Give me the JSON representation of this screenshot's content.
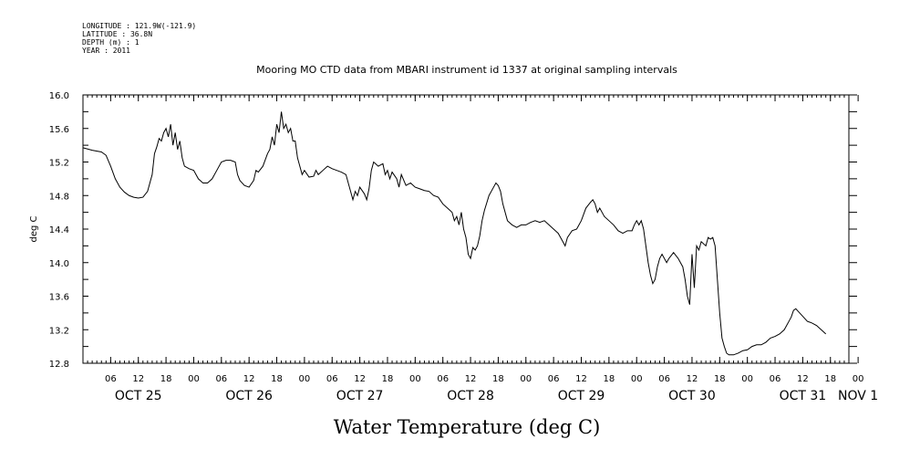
{
  "header": {
    "longitude": "LONGITUDE : 121.9W(-121.9)",
    "latitude": "LATITUDE : 36.8N",
    "depth": "DEPTH (m) : 1",
    "year": "YEAR : 2011"
  },
  "chart_data": {
    "type": "line",
    "title": "Mooring MO CTD data from MBARI instrument id 1337 at original sampling intervals",
    "xlabel": "Water Temperature (deg C)",
    "ylabel": "deg C",
    "xlim_hours": [
      0,
      166
    ],
    "ylim": [
      12.8,
      16.0
    ],
    "yticks": [
      "12.8",
      "13.2",
      "13.6",
      "14.0",
      "14.4",
      "14.8",
      "15.2",
      "15.6",
      "16.0"
    ],
    "hour_ticks": [
      "06",
      "12",
      "18",
      "00",
      "06",
      "12",
      "18",
      "00",
      "06",
      "12",
      "18",
      "00",
      "06",
      "12",
      "18",
      "00",
      "06",
      "12",
      "18",
      "00",
      "06",
      "12",
      "18",
      "00",
      "06",
      "12",
      "18",
      "00"
    ],
    "day_labels": [
      "OCT 25",
      "OCT 26",
      "OCT 27",
      "OCT 28",
      "OCT 29",
      "OCT 30",
      "OCT 31",
      "NOV 1"
    ],
    "series": [
      {
        "values": [
          [
            0,
            15.37
          ],
          [
            2,
            15.34
          ],
          [
            4,
            15.32
          ],
          [
            5,
            15.28
          ],
          [
            6,
            15.15
          ],
          [
            7,
            15.0
          ],
          [
            8,
            14.9
          ],
          [
            9,
            14.84
          ],
          [
            10,
            14.8
          ],
          [
            11,
            14.78
          ],
          [
            12,
            14.77
          ],
          [
            13,
            14.78
          ],
          [
            14,
            14.85
          ],
          [
            15,
            15.05
          ],
          [
            15.5,
            15.3
          ],
          [
            16,
            15.38
          ],
          [
            16.5,
            15.48
          ],
          [
            17,
            15.45
          ],
          [
            17.5,
            15.55
          ],
          [
            18,
            15.6
          ],
          [
            18.5,
            15.5
          ],
          [
            19,
            15.65
          ],
          [
            19.5,
            15.4
          ],
          [
            20,
            15.55
          ],
          [
            20.5,
            15.35
          ],
          [
            21,
            15.45
          ],
          [
            21.5,
            15.25
          ],
          [
            22,
            15.15
          ],
          [
            23,
            15.12
          ],
          [
            24,
            15.1
          ],
          [
            25,
            15.0
          ],
          [
            26,
            14.95
          ],
          [
            27,
            14.95
          ],
          [
            28,
            15.0
          ],
          [
            29,
            15.1
          ],
          [
            30,
            15.2
          ],
          [
            31,
            15.22
          ],
          [
            32,
            15.22
          ],
          [
            33,
            15.2
          ],
          [
            33.5,
            15.05
          ],
          [
            34,
            14.98
          ],
          [
            35,
            14.92
          ],
          [
            36,
            14.9
          ],
          [
            37,
            14.98
          ],
          [
            37.5,
            15.1
          ],
          [
            38,
            15.08
          ],
          [
            39,
            15.15
          ],
          [
            40,
            15.3
          ],
          [
            40.5,
            15.35
          ],
          [
            41,
            15.5
          ],
          [
            41.5,
            15.4
          ],
          [
            42,
            15.65
          ],
          [
            42.5,
            15.55
          ],
          [
            43,
            15.8
          ],
          [
            43.5,
            15.6
          ],
          [
            44,
            15.65
          ],
          [
            44.5,
            15.55
          ],
          [
            45,
            15.6
          ],
          [
            45.5,
            15.45
          ],
          [
            46,
            15.45
          ],
          [
            46.5,
            15.25
          ],
          [
            47,
            15.15
          ],
          [
            47.5,
            15.05
          ],
          [
            48,
            15.1
          ],
          [
            49,
            15.02
          ],
          [
            50,
            15.03
          ],
          [
            50.5,
            15.1
          ],
          [
            51,
            15.05
          ],
          [
            52,
            15.1
          ],
          [
            53,
            15.15
          ],
          [
            54,
            15.12
          ],
          [
            55,
            15.1
          ],
          [
            56,
            15.08
          ],
          [
            57,
            15.05
          ],
          [
            57.5,
            14.95
          ],
          [
            58,
            14.85
          ],
          [
            58.5,
            14.75
          ],
          [
            59,
            14.85
          ],
          [
            59.5,
            14.8
          ],
          [
            60,
            14.9
          ],
          [
            61,
            14.82
          ],
          [
            61.5,
            14.75
          ],
          [
            62,
            14.88
          ],
          [
            62.5,
            15.1
          ],
          [
            63,
            15.2
          ],
          [
            64,
            15.15
          ],
          [
            65,
            15.18
          ],
          [
            65.5,
            15.05
          ],
          [
            66,
            15.1
          ],
          [
            66.5,
            15.0
          ],
          [
            67,
            15.08
          ],
          [
            68,
            15.0
          ],
          [
            68.5,
            14.9
          ],
          [
            69,
            15.05
          ],
          [
            70,
            14.92
          ],
          [
            71,
            14.95
          ],
          [
            72,
            14.9
          ],
          [
            73,
            14.88
          ],
          [
            74,
            14.86
          ],
          [
            75,
            14.85
          ],
          [
            76,
            14.8
          ],
          [
            77,
            14.78
          ],
          [
            78,
            14.7
          ],
          [
            79,
            14.65
          ],
          [
            80,
            14.6
          ],
          [
            80.5,
            14.5
          ],
          [
            81,
            14.55
          ],
          [
            81.5,
            14.45
          ],
          [
            82,
            14.6
          ],
          [
            82.5,
            14.4
          ],
          [
            83,
            14.3
          ],
          [
            83.5,
            14.1
          ],
          [
            84,
            14.05
          ],
          [
            84.5,
            14.18
          ],
          [
            85,
            14.15
          ],
          [
            85.5,
            14.2
          ],
          [
            86,
            14.32
          ],
          [
            86.5,
            14.5
          ],
          [
            87,
            14.62
          ],
          [
            88,
            14.8
          ],
          [
            89,
            14.9
          ],
          [
            89.5,
            14.95
          ],
          [
            90,
            14.92
          ],
          [
            90.5,
            14.85
          ],
          [
            91,
            14.7
          ],
          [
            92,
            14.5
          ],
          [
            93,
            14.45
          ],
          [
            94,
            14.42
          ],
          [
            95,
            14.45
          ],
          [
            96,
            14.45
          ],
          [
            97,
            14.48
          ],
          [
            98,
            14.5
          ],
          [
            99,
            14.48
          ],
          [
            100,
            14.5
          ],
          [
            101,
            14.45
          ],
          [
            102,
            14.4
          ],
          [
            103,
            14.35
          ],
          [
            104,
            14.25
          ],
          [
            104.5,
            14.2
          ],
          [
            105,
            14.3
          ],
          [
            106,
            14.38
          ],
          [
            107,
            14.4
          ],
          [
            108,
            14.5
          ],
          [
            109,
            14.65
          ],
          [
            110,
            14.72
          ],
          [
            110.5,
            14.75
          ],
          [
            111,
            14.7
          ],
          [
            111.5,
            14.6
          ],
          [
            112,
            14.65
          ],
          [
            113,
            14.55
          ],
          [
            114,
            14.5
          ],
          [
            115,
            14.45
          ],
          [
            116,
            14.38
          ],
          [
            117,
            14.35
          ],
          [
            118,
            14.38
          ],
          [
            119,
            14.38
          ],
          [
            119.5,
            14.45
          ],
          [
            120,
            14.5
          ],
          [
            120.5,
            14.45
          ],
          [
            121,
            14.5
          ],
          [
            121.5,
            14.4
          ],
          [
            122,
            14.2
          ],
          [
            122.5,
            14.0
          ],
          [
            123,
            13.85
          ],
          [
            123.5,
            13.75
          ],
          [
            124,
            13.8
          ],
          [
            124.5,
            13.95
          ],
          [
            125,
            14.05
          ],
          [
            125.5,
            14.1
          ],
          [
            126,
            14.05
          ],
          [
            126.5,
            14.0
          ],
          [
            127,
            14.05
          ],
          [
            128,
            14.12
          ],
          [
            129,
            14.05
          ],
          [
            130,
            13.95
          ],
          [
            130.5,
            13.8
          ],
          [
            131,
            13.6
          ],
          [
            131.5,
            13.5
          ],
          [
            132,
            14.1
          ],
          [
            132.5,
            13.7
          ],
          [
            133,
            14.2
          ],
          [
            133.5,
            14.15
          ],
          [
            134,
            14.25
          ],
          [
            135,
            14.2
          ],
          [
            135.5,
            14.3
          ],
          [
            136,
            14.28
          ],
          [
            136.5,
            14.3
          ],
          [
            137,
            14.2
          ],
          [
            137.5,
            13.8
          ],
          [
            138,
            13.4
          ],
          [
            138.5,
            13.1
          ],
          [
            139,
            13.0
          ],
          [
            139.5,
            12.92
          ],
          [
            140,
            12.9
          ],
          [
            141,
            12.9
          ],
          [
            142,
            12.92
          ],
          [
            143,
            12.95
          ],
          [
            144,
            12.96
          ],
          [
            145,
            13.0
          ],
          [
            146,
            13.02
          ],
          [
            147,
            13.02
          ],
          [
            148,
            13.05
          ],
          [
            149,
            13.1
          ],
          [
            150,
            13.12
          ],
          [
            151,
            13.15
          ],
          [
            152,
            13.2
          ],
          [
            153,
            13.3
          ],
          [
            153.5,
            13.35
          ],
          [
            154,
            13.43
          ],
          [
            154.5,
            13.45
          ],
          [
            155,
            13.42
          ],
          [
            156,
            13.36
          ],
          [
            157,
            13.3
          ],
          [
            158,
            13.28
          ],
          [
            159,
            13.25
          ],
          [
            160,
            13.2
          ],
          [
            161,
            13.15
          ]
        ]
      }
    ]
  }
}
